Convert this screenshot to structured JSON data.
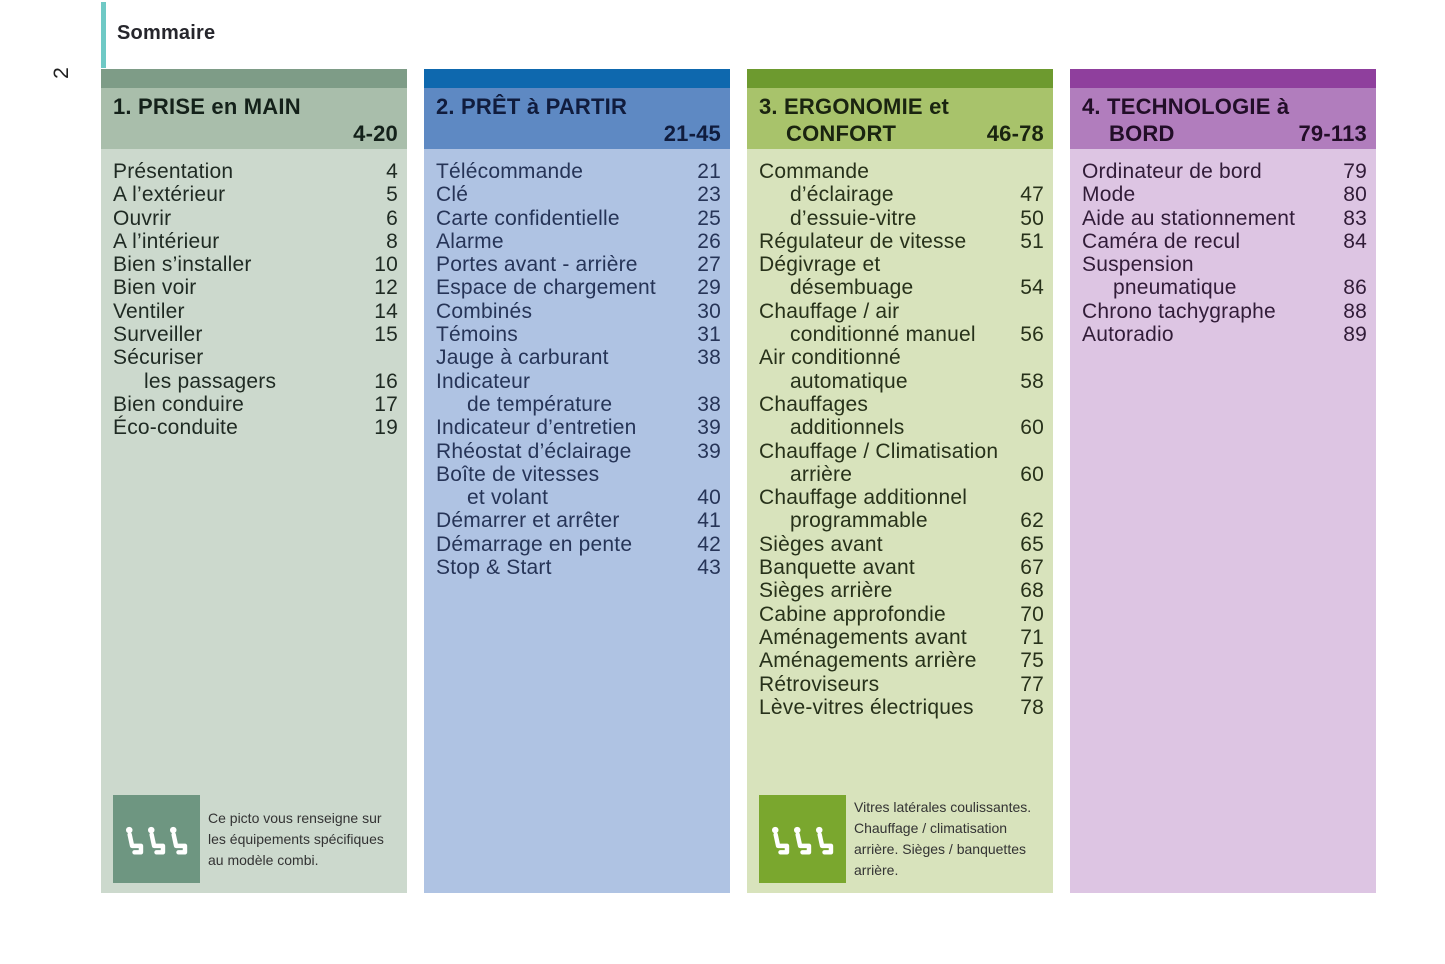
{
  "page": {
    "sommaire_label": "Sommaire",
    "page_number": "2"
  },
  "colors": {
    "accent_bar": "#6FC9C5",
    "page_bg": "#FFFFFF",
    "note_text": "#333333"
  },
  "sections": [
    {
      "id": "prise-en-main",
      "title_line1": "1. PRISE en MAIN",
      "title_line2": "",
      "page_range": "4-20",
      "colors": {
        "strip": "#7E9C87",
        "header": "#A9BEAB",
        "body": "#CCD9CD",
        "text": "#1F2A23",
        "header_text": "#14211A",
        "picto": "#6E9681"
      },
      "items": [
        {
          "label": "Présentation",
          "page": "4",
          "indent": false
        },
        {
          "label": "A l’extérieur",
          "page": "5",
          "indent": false
        },
        {
          "label": "Ouvrir",
          "page": "6",
          "indent": false
        },
        {
          "label": "A l’intérieur",
          "page": "8",
          "indent": false
        },
        {
          "label": "Bien s’installer",
          "page": "10",
          "indent": false
        },
        {
          "label": "Bien voir",
          "page": "12",
          "indent": false
        },
        {
          "label": "Ventiler",
          "page": "14",
          "indent": false
        },
        {
          "label": "Surveiller",
          "page": "15",
          "indent": false
        },
        {
          "label": "Sécuriser",
          "page": "",
          "indent": false
        },
        {
          "label": "les passagers",
          "page": "16",
          "indent": true
        },
        {
          "label": "Bien conduire",
          "page": "17",
          "indent": false
        },
        {
          "label": "Éco-conduite",
          "page": "19",
          "indent": false
        }
      ],
      "note": {
        "lines": [
          "Ce picto vous renseigne sur",
          "les équipements spécifiques",
          "au modèle combi."
        ]
      }
    },
    {
      "id": "pret-a-partir",
      "title_line1": "2. PRÊT à PARTIR",
      "title_line2": "",
      "page_range": "21-45",
      "colors": {
        "strip": "#0E68AE",
        "header": "#5E89C3",
        "body": "#AFC3E3",
        "text": "#263457",
        "header_text": "#101C3D",
        "picto": ""
      },
      "items": [
        {
          "label": "Télécommande",
          "page": "21",
          "indent": false
        },
        {
          "label": "Clé",
          "page": "23",
          "indent": false
        },
        {
          "label": "Carte confidentielle",
          "page": "25",
          "indent": false
        },
        {
          "label": "Alarme",
          "page": "26",
          "indent": false
        },
        {
          "label": "Portes avant - arrière",
          "page": "27",
          "indent": false
        },
        {
          "label": "Espace de chargement",
          "page": "29",
          "indent": false
        },
        {
          "label": "Combinés",
          "page": "30",
          "indent": false
        },
        {
          "label": "Témoins",
          "page": "31",
          "indent": false
        },
        {
          "label": "Jauge à carburant",
          "page": "38",
          "indent": false
        },
        {
          "label": "Indicateur",
          "page": "",
          "indent": false
        },
        {
          "label": "de température",
          "page": "38",
          "indent": true
        },
        {
          "label": "Indicateur d’entretien",
          "page": "39",
          "indent": false
        },
        {
          "label": "Rhéostat d’éclairage",
          "page": "39",
          "indent": false
        },
        {
          "label": "Boîte de vitesses",
          "page": "",
          "indent": false
        },
        {
          "label": "et volant",
          "page": "40",
          "indent": true
        },
        {
          "label": "Démarrer et arrêter",
          "page": "41",
          "indent": false
        },
        {
          "label": "Démarrage en pente",
          "page": "42",
          "indent": false
        },
        {
          "label": "Stop & Start",
          "page": "43",
          "indent": false
        }
      ]
    },
    {
      "id": "ergonomie-confort",
      "title_line1": "3. ERGONOMIE et",
      "title_line2": "CONFORT",
      "page_range": "46-78",
      "colors": {
        "strip": "#6D9A2F",
        "header": "#A8C36B",
        "body": "#D8E3BC",
        "text": "#27311A",
        "header_text": "#1A2410",
        "picto": "#7AA72E"
      },
      "items": [
        {
          "label": "Commande",
          "page": "",
          "indent": false
        },
        {
          "label": "d’éclairage",
          "page": "47",
          "indent": true
        },
        {
          "label": "d’essuie-vitre",
          "page": "50",
          "indent": true
        },
        {
          "label": "Régulateur de vitesse",
          "page": "51",
          "indent": false
        },
        {
          "label": "Dégivrage et",
          "page": "",
          "indent": false
        },
        {
          "label": "désembuage",
          "page": "54",
          "indent": true
        },
        {
          "label": "Chauffage / air",
          "page": "",
          "indent": false
        },
        {
          "label": "conditionné manuel",
          "page": "56",
          "indent": true
        },
        {
          "label": "Air conditionné",
          "page": "",
          "indent": false
        },
        {
          "label": "automatique",
          "page": "58",
          "indent": true
        },
        {
          "label": "Chauffages",
          "page": "",
          "indent": false
        },
        {
          "label": "additionnels",
          "page": "60",
          "indent": true
        },
        {
          "label": "Chauffage / Climatisation",
          "page": "",
          "indent": false
        },
        {
          "label": "arrière",
          "page": "60",
          "indent": true
        },
        {
          "label": "Chauffage additionnel",
          "page": "",
          "indent": false
        },
        {
          "label": "programmable",
          "page": "62",
          "indent": true
        },
        {
          "label": "Sièges avant",
          "page": "65",
          "indent": false
        },
        {
          "label": "Banquette avant",
          "page": "67",
          "indent": false
        },
        {
          "label": "Sièges arrière",
          "page": "68",
          "indent": false
        },
        {
          "label": "Cabine approfondie",
          "page": "70",
          "indent": false
        },
        {
          "label": "Aménagements avant",
          "page": "71",
          "indent": false
        },
        {
          "label": "Aménagements arrière",
          "page": "75",
          "indent": false
        },
        {
          "label": "Rétroviseurs",
          "page": "77",
          "indent": false
        },
        {
          "label": "Lève-vitres électriques",
          "page": "78",
          "indent": false
        }
      ],
      "note": {
        "lines": [
          "Vitres latérales coulissantes.",
          "Chauffage / climatisation",
          "arrière. Sièges / banquettes",
          "arrière."
        ]
      }
    },
    {
      "id": "technologie-a-bord",
      "title_line1": "4. TECHNOLOGIE à",
      "title_line2": "BORD",
      "page_range": "79-113",
      "colors": {
        "strip": "#8F3F9D",
        "header": "#B17DBD",
        "body": "#DDC5E3",
        "text": "#311C38",
        "header_text": "#220E28",
        "picto": ""
      },
      "items": [
        {
          "label": "Ordinateur de bord",
          "page": "79",
          "indent": false
        },
        {
          "label": "Mode",
          "page": "80",
          "indent": false
        },
        {
          "label": "Aide au stationnement",
          "page": "83",
          "indent": false
        },
        {
          "label": "Caméra de recul",
          "page": "84",
          "indent": false
        },
        {
          "label": "Suspension",
          "page": "",
          "indent": false
        },
        {
          "label": "pneumatique",
          "page": "86",
          "indent": true
        },
        {
          "label": "Chrono tachygraphe",
          "page": "88",
          "indent": false
        },
        {
          "label": "Autoradio",
          "page": "89",
          "indent": false
        }
      ]
    }
  ]
}
